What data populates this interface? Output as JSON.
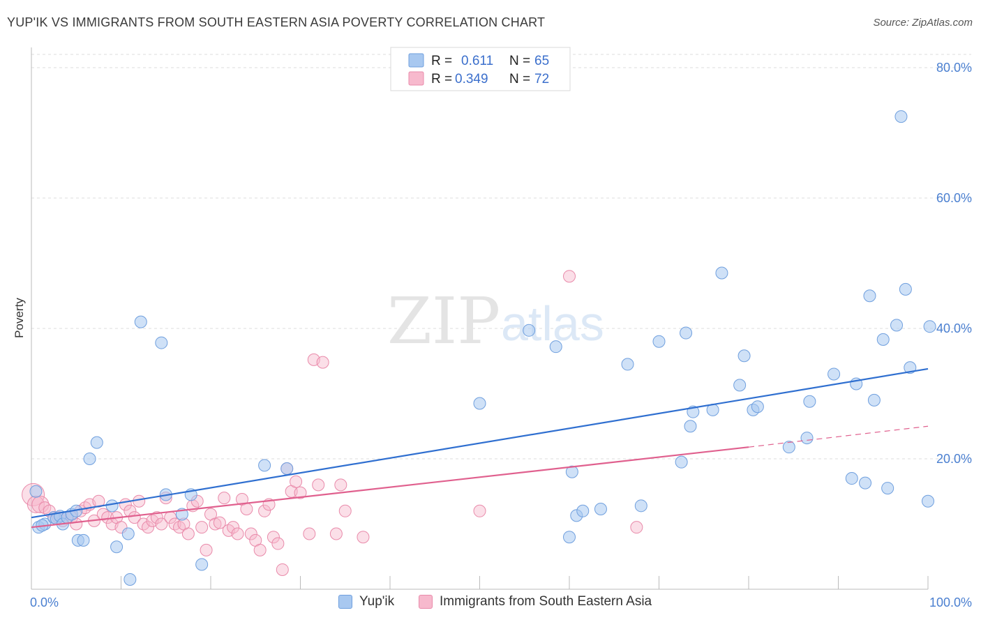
{
  "title": "YUP'IK VS IMMIGRANTS FROM SOUTH EASTERN ASIA POVERTY CORRELATION CHART",
  "source": "Source: ZipAtlas.com",
  "watermark": {
    "zip": "ZIP",
    "atlas": "atlas"
  },
  "colors": {
    "blue_fill": "#a8c8f0",
    "blue_stroke": "#6f9fde",
    "blue_line": "#2f6fd0",
    "pink_fill": "#f7b9cd",
    "pink_stroke": "#e98aaa",
    "pink_line": "#e0608e",
    "tick_text": "#4a7fd0",
    "grid": "#dddddd"
  },
  "legend": {
    "rows": [
      {
        "r_label": "R =",
        "r_value": "0.611",
        "n_label": "N =",
        "n_value": "65"
      },
      {
        "r_label": "R =",
        "r_value": "0.349",
        "n_label": "N =",
        "n_value": "72"
      }
    ]
  },
  "bottom_legend": {
    "series1": "Yup'ik",
    "series2": "Immigrants from South Eastern Asia"
  },
  "chart_data": {
    "type": "scatter",
    "ylabel": "Poverty",
    "xlim": [
      0,
      100
    ],
    "ylim": [
      0,
      80
    ],
    "x_tick_labels": [
      "0.0%",
      "100.0%"
    ],
    "y_tick_labels": [
      "20.0%",
      "40.0%",
      "60.0%",
      "80.0%"
    ],
    "y_ticks": [
      20,
      40,
      60,
      80
    ],
    "grid": true,
    "series": [
      {
        "name": "Yup'ik",
        "color": "#a8c8f0",
        "trend": {
          "x": [
            0,
            100
          ],
          "y": [
            11.0,
            33.8
          ]
        },
        "points": [
          [
            0.5,
            15
          ],
          [
            0.8,
            9.5
          ],
          [
            1.5,
            10
          ],
          [
            2.5,
            11
          ],
          [
            2.8,
            10.8
          ],
          [
            3.2,
            11.2
          ],
          [
            3.5,
            10
          ],
          [
            4,
            11
          ],
          [
            4.5,
            11.5
          ],
          [
            5,
            12
          ],
          [
            5.2,
            7.5
          ],
          [
            5.8,
            7.5
          ],
          [
            7.3,
            22.5
          ],
          [
            6.5,
            20
          ],
          [
            9,
            12.8
          ],
          [
            9.5,
            6.5
          ],
          [
            10.8,
            8.5
          ],
          [
            11,
            1.5
          ],
          [
            12.2,
            41
          ],
          [
            14.5,
            37.8
          ],
          [
            15,
            14.5
          ],
          [
            16.8,
            11.5
          ],
          [
            17.8,
            14.5
          ],
          [
            19,
            3.8
          ],
          [
            26,
            19
          ],
          [
            28.5,
            18.5
          ],
          [
            50,
            28.5
          ],
          [
            55.5,
            39.7
          ],
          [
            58.5,
            37.2
          ],
          [
            60,
            8
          ],
          [
            60.3,
            18
          ],
          [
            60.8,
            11.3
          ],
          [
            61.5,
            12
          ],
          [
            63.5,
            12.3
          ],
          [
            66.5,
            34.5
          ],
          [
            68,
            12.8
          ],
          [
            70,
            38
          ],
          [
            72.5,
            19.5
          ],
          [
            73,
            39.3
          ],
          [
            73.5,
            25
          ],
          [
            73.8,
            27.2
          ],
          [
            76,
            27.5
          ],
          [
            77,
            48.5
          ],
          [
            79,
            31.3
          ],
          [
            79.5,
            35.8
          ],
          [
            80.5,
            27.5
          ],
          [
            81,
            28
          ],
          [
            84.5,
            21.8
          ],
          [
            86.5,
            23.2
          ],
          [
            86.8,
            28.8
          ],
          [
            89.5,
            33
          ],
          [
            91.5,
            17
          ],
          [
            92,
            31.5
          ],
          [
            93,
            16.3
          ],
          [
            93.5,
            45
          ],
          [
            94,
            29
          ],
          [
            95,
            38.3
          ],
          [
            95.5,
            15.5
          ],
          [
            96.5,
            40.5
          ],
          [
            97,
            72.5
          ],
          [
            97.5,
            46
          ],
          [
            98,
            34
          ],
          [
            100,
            13.5
          ],
          [
            100.2,
            40.3
          ],
          [
            1.2,
            9.8
          ]
        ]
      },
      {
        "name": "Immigrants from South Eastern Asia",
        "color": "#f7b9cd",
        "trend": {
          "x": [
            0,
            80
          ],
          "y": [
            9.5,
            21.8
          ]
        },
        "trend_dashed": {
          "x": [
            80,
            100
          ],
          "y": [
            21.8,
            25.0
          ]
        },
        "points": [
          [
            0.2,
            14.5
          ],
          [
            0.5,
            13
          ],
          [
            1,
            13
          ],
          [
            1.5,
            12.5
          ],
          [
            2,
            12
          ],
          [
            2.5,
            11
          ],
          [
            3,
            11
          ],
          [
            3.5,
            10.5
          ],
          [
            4,
            11
          ],
          [
            4.5,
            11
          ],
          [
            5,
            10
          ],
          [
            5.5,
            12
          ],
          [
            6,
            12.5
          ],
          [
            6.5,
            13
          ],
          [
            7,
            10.5
          ],
          [
            7.5,
            13.5
          ],
          [
            8,
            11.5
          ],
          [
            8.5,
            11
          ],
          [
            9,
            10
          ],
          [
            9.5,
            11
          ],
          [
            10,
            9.5
          ],
          [
            10.5,
            13
          ],
          [
            11,
            12
          ],
          [
            11.5,
            11
          ],
          [
            12,
            13.5
          ],
          [
            12.5,
            10
          ],
          [
            13,
            9.5
          ],
          [
            13.5,
            10.5
          ],
          [
            14,
            11
          ],
          [
            14.5,
            10
          ],
          [
            15,
            14
          ],
          [
            15.5,
            11
          ],
          [
            16,
            10
          ],
          [
            16.5,
            9.5
          ],
          [
            17,
            10
          ],
          [
            17.5,
            8.5
          ],
          [
            18,
            12.8
          ],
          [
            18.5,
            13.5
          ],
          [
            19,
            9.5
          ],
          [
            19.5,
            6
          ],
          [
            20,
            11.5
          ],
          [
            20.5,
            10
          ],
          [
            21,
            10.2
          ],
          [
            21.5,
            14
          ],
          [
            22,
            9
          ],
          [
            22.5,
            9.5
          ],
          [
            23,
            8.5
          ],
          [
            23.5,
            13.8
          ],
          [
            24,
            12.3
          ],
          [
            24.5,
            8.5
          ],
          [
            25,
            7.5
          ],
          [
            25.5,
            6
          ],
          [
            26,
            12
          ],
          [
            26.5,
            13
          ],
          [
            27,
            8
          ],
          [
            27.5,
            7
          ],
          [
            28,
            3
          ],
          [
            28.5,
            18.5
          ],
          [
            29,
            15
          ],
          [
            29.5,
            16.5
          ],
          [
            30,
            14.8
          ],
          [
            31,
            8.5
          ],
          [
            31.5,
            35.2
          ],
          [
            32,
            16
          ],
          [
            32.5,
            34.8
          ],
          [
            34,
            8.5
          ],
          [
            34.5,
            16
          ],
          [
            35,
            12
          ],
          [
            37,
            8
          ],
          [
            50,
            12
          ],
          [
            60,
            48
          ],
          [
            67.5,
            9.5
          ]
        ]
      }
    ]
  }
}
